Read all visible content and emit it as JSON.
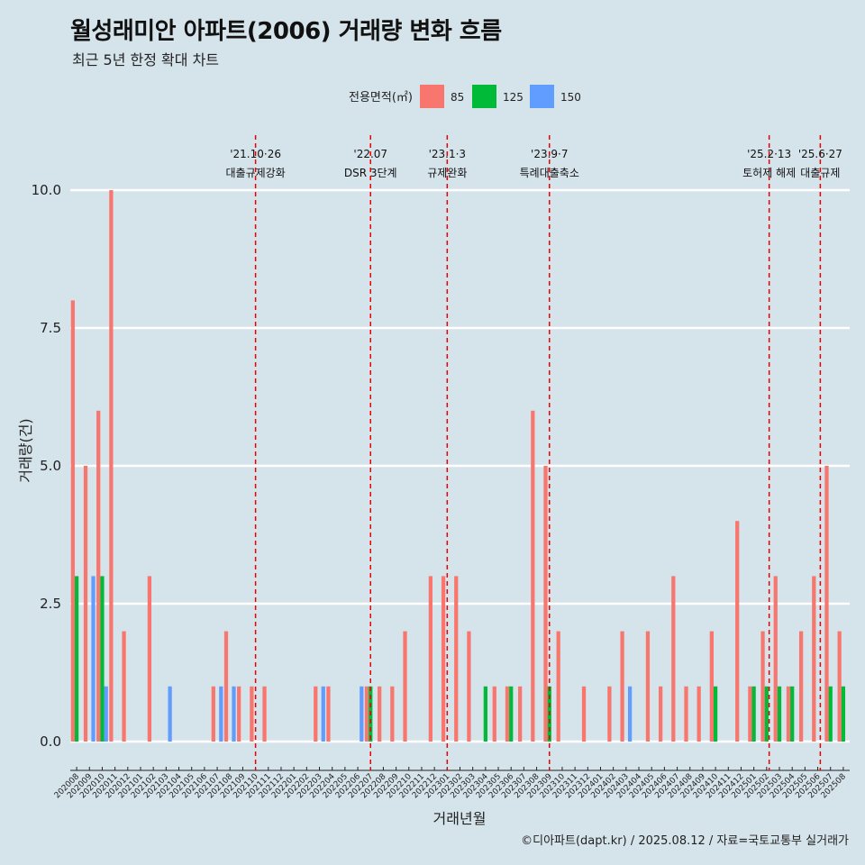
{
  "title": "월성래미안 아파트(2006) 거래량 변화 흐름",
  "subtitle": "최근 5년 한정 확대 차트",
  "caption": "©디아파트(dapt.kr) / 2025.08.12 / 자료=국토교통부 실거래가",
  "colors": {
    "background": "#d5e3ea",
    "85": "#f8766d",
    "125": "#00ba38",
    "150": "#619cff",
    "event_line": "#ee0000",
    "grid": "#ffffff"
  },
  "chart_data": {
    "type": "bar",
    "title": "월성래미안 아파트(2006) 거래량 변화 흐름",
    "subtitle": "최근 5년 한정 확대 차트",
    "xlabel": "거래년월",
    "ylabel": "거래량(건)",
    "ylim": [
      0,
      10
    ],
    "yticks": [
      "0.0",
      "2.5",
      "5.0",
      "7.5",
      "10.0"
    ],
    "grid": true,
    "legend": {
      "title": "전용면적(㎡)",
      "position": "top"
    },
    "categories": [
      "202008",
      "202009",
      "202010",
      "202011",
      "202012",
      "202101",
      "202102",
      "202103",
      "202104",
      "202105",
      "202106",
      "202107",
      "202108",
      "202109",
      "202110",
      "202111",
      "202112",
      "202201",
      "202202",
      "202203",
      "202204",
      "202205",
      "202206",
      "202207",
      "202208",
      "202209",
      "202210",
      "202211",
      "202212",
      "202301",
      "202302",
      "202303",
      "202304",
      "202305",
      "202306",
      "202307",
      "202308",
      "202309",
      "202310",
      "202311",
      "202312",
      "202401",
      "202402",
      "202403",
      "202404",
      "202405",
      "202406",
      "202407",
      "202408",
      "202409",
      "202410",
      "202411",
      "202412",
      "202501",
      "202502",
      "202503",
      "202504",
      "202505",
      "202506",
      "202507",
      "202508"
    ],
    "series": [
      {
        "name": "85",
        "color": "#f8766d",
        "values": [
          8,
          5,
          6,
          10,
          2,
          0,
          3,
          0,
          0,
          0,
          0,
          1,
          2,
          1,
          1,
          1,
          0,
          0,
          0,
          1,
          1,
          0,
          0,
          1,
          1,
          1,
          2,
          0,
          3,
          3,
          3,
          2,
          0,
          1,
          1,
          1,
          6,
          5,
          2,
          0,
          1,
          0,
          1,
          2,
          0,
          2,
          1,
          3,
          1,
          1,
          2,
          0,
          4,
          1,
          2,
          3,
          1,
          2,
          3,
          5,
          2
        ]
      },
      {
        "name": "125",
        "color": "#00ba38",
        "values": [
          3,
          0,
          3,
          0,
          0,
          0,
          0,
          0,
          0,
          0,
          0,
          0,
          0,
          0,
          0,
          0,
          0,
          0,
          0,
          0,
          0,
          0,
          0,
          1,
          0,
          0,
          0,
          0,
          0,
          0,
          0,
          0,
          1,
          0,
          1,
          0,
          0,
          1,
          0,
          0,
          0,
          0,
          0,
          0,
          0,
          0,
          0,
          0,
          0,
          0,
          1,
          0,
          0,
          1,
          1,
          1,
          1,
          0,
          0,
          1,
          1
        ]
      },
      {
        "name": "150",
        "color": "#619cff",
        "values": [
          0,
          3,
          1,
          0,
          0,
          0,
          0,
          1,
          0,
          0,
          0,
          1,
          1,
          0,
          0,
          0,
          0,
          0,
          0,
          1,
          0,
          0,
          1,
          0,
          0,
          0,
          0,
          0,
          0,
          0,
          0,
          0,
          0,
          0,
          0,
          0,
          0,
          0,
          0,
          0,
          0,
          0,
          0,
          1,
          0,
          0,
          0,
          0,
          0,
          0,
          0,
          0,
          0,
          0,
          0,
          0,
          0,
          0,
          0,
          0,
          0
        ]
      }
    ],
    "events": [
      {
        "date": "'21.10·26",
        "label": "대출규제강화",
        "at": 14.5
      },
      {
        "date": "'22.07",
        "label": "DSR 3단계",
        "at": 23.5
      },
      {
        "date": "'23.1·3",
        "label": "규제완화",
        "at": 29.5
      },
      {
        "date": "'23.9·7",
        "label": "특례대출축소",
        "at": 37.5
      },
      {
        "date": "'25.2·13",
        "label": "토허제 해제",
        "at": 54.7
      },
      {
        "date": "'25.6·27",
        "label": "대출규제",
        "at": 58.7
      }
    ]
  }
}
